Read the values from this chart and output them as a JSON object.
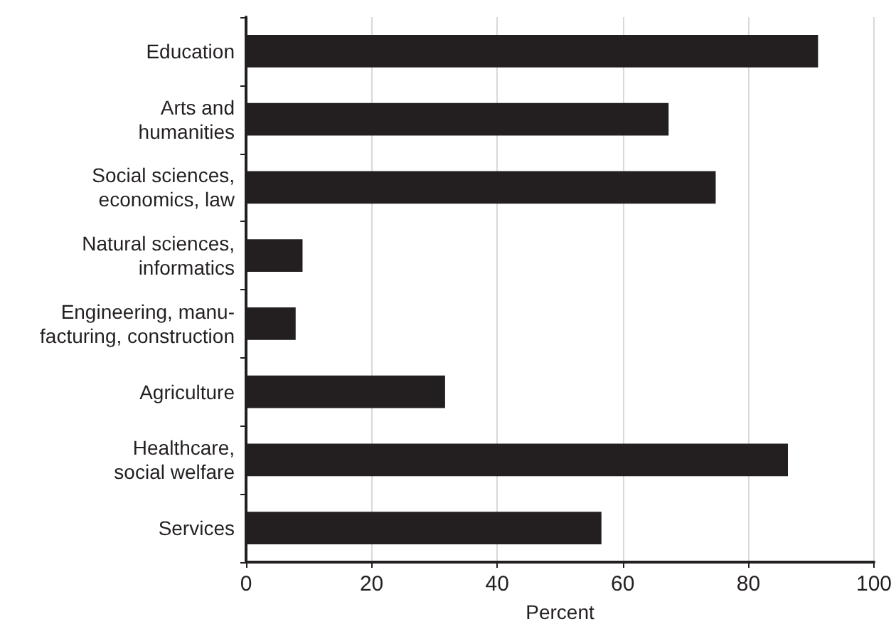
{
  "chart_data": {
    "type": "bar",
    "orientation": "horizontal",
    "xlabel": "Percent",
    "categories": [
      "Education",
      "Arts and\nhumanities",
      "Social sciences,\neconomics, law",
      "Natural sciences,\ninformatics",
      "Engineering, manu-\nfacturing, construction",
      "Agriculture",
      "Healthcare,\nsocial welfare",
      "Services"
    ],
    "values": [
      91.1,
      67.3,
      74.8,
      9.0,
      7.9,
      31.7,
      86.3,
      56.6
    ],
    "color": "#231f20",
    "xlim": [
      0,
      100
    ],
    "xticks": [
      0,
      20,
      40,
      60,
      80,
      100
    ],
    "grid": "x"
  }
}
